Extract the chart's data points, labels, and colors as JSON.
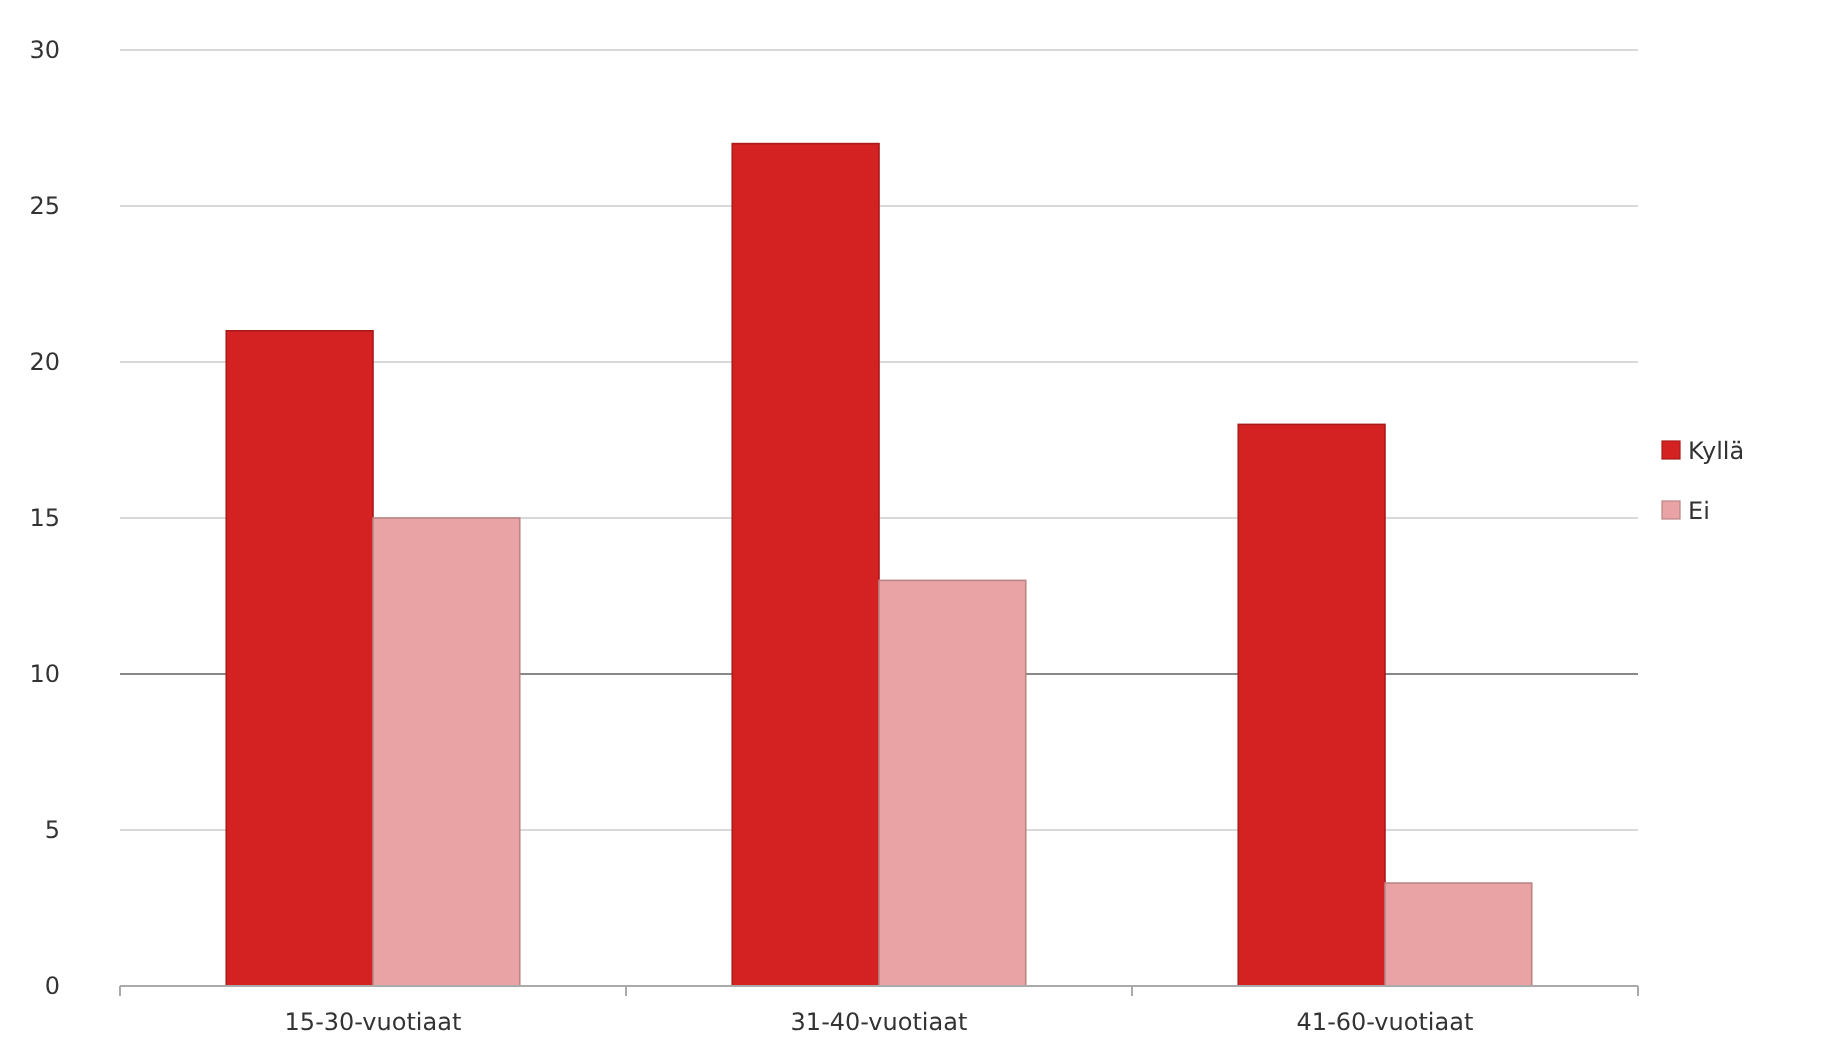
{
  "chart_data": {
    "type": "bar",
    "categories": [
      "15-30-vuotiaat",
      "31-40-vuotiaat",
      "41-60-vuotiaat"
    ],
    "series": [
      {
        "name": "Kyllä",
        "color": "#d42222",
        "values": [
          21,
          27,
          18
        ]
      },
      {
        "name": "Ei",
        "color": "#e9a3a5",
        "values": [
          15,
          13,
          3.3
        ]
      }
    ],
    "ylim": [
      0,
      30
    ],
    "yticks": [
      0,
      5,
      10,
      15,
      20,
      25,
      30
    ],
    "grid": "y",
    "legend": "right",
    "ref_lines": [
      {
        "axis": "y",
        "value": 10,
        "color": "#888888"
      }
    ]
  }
}
